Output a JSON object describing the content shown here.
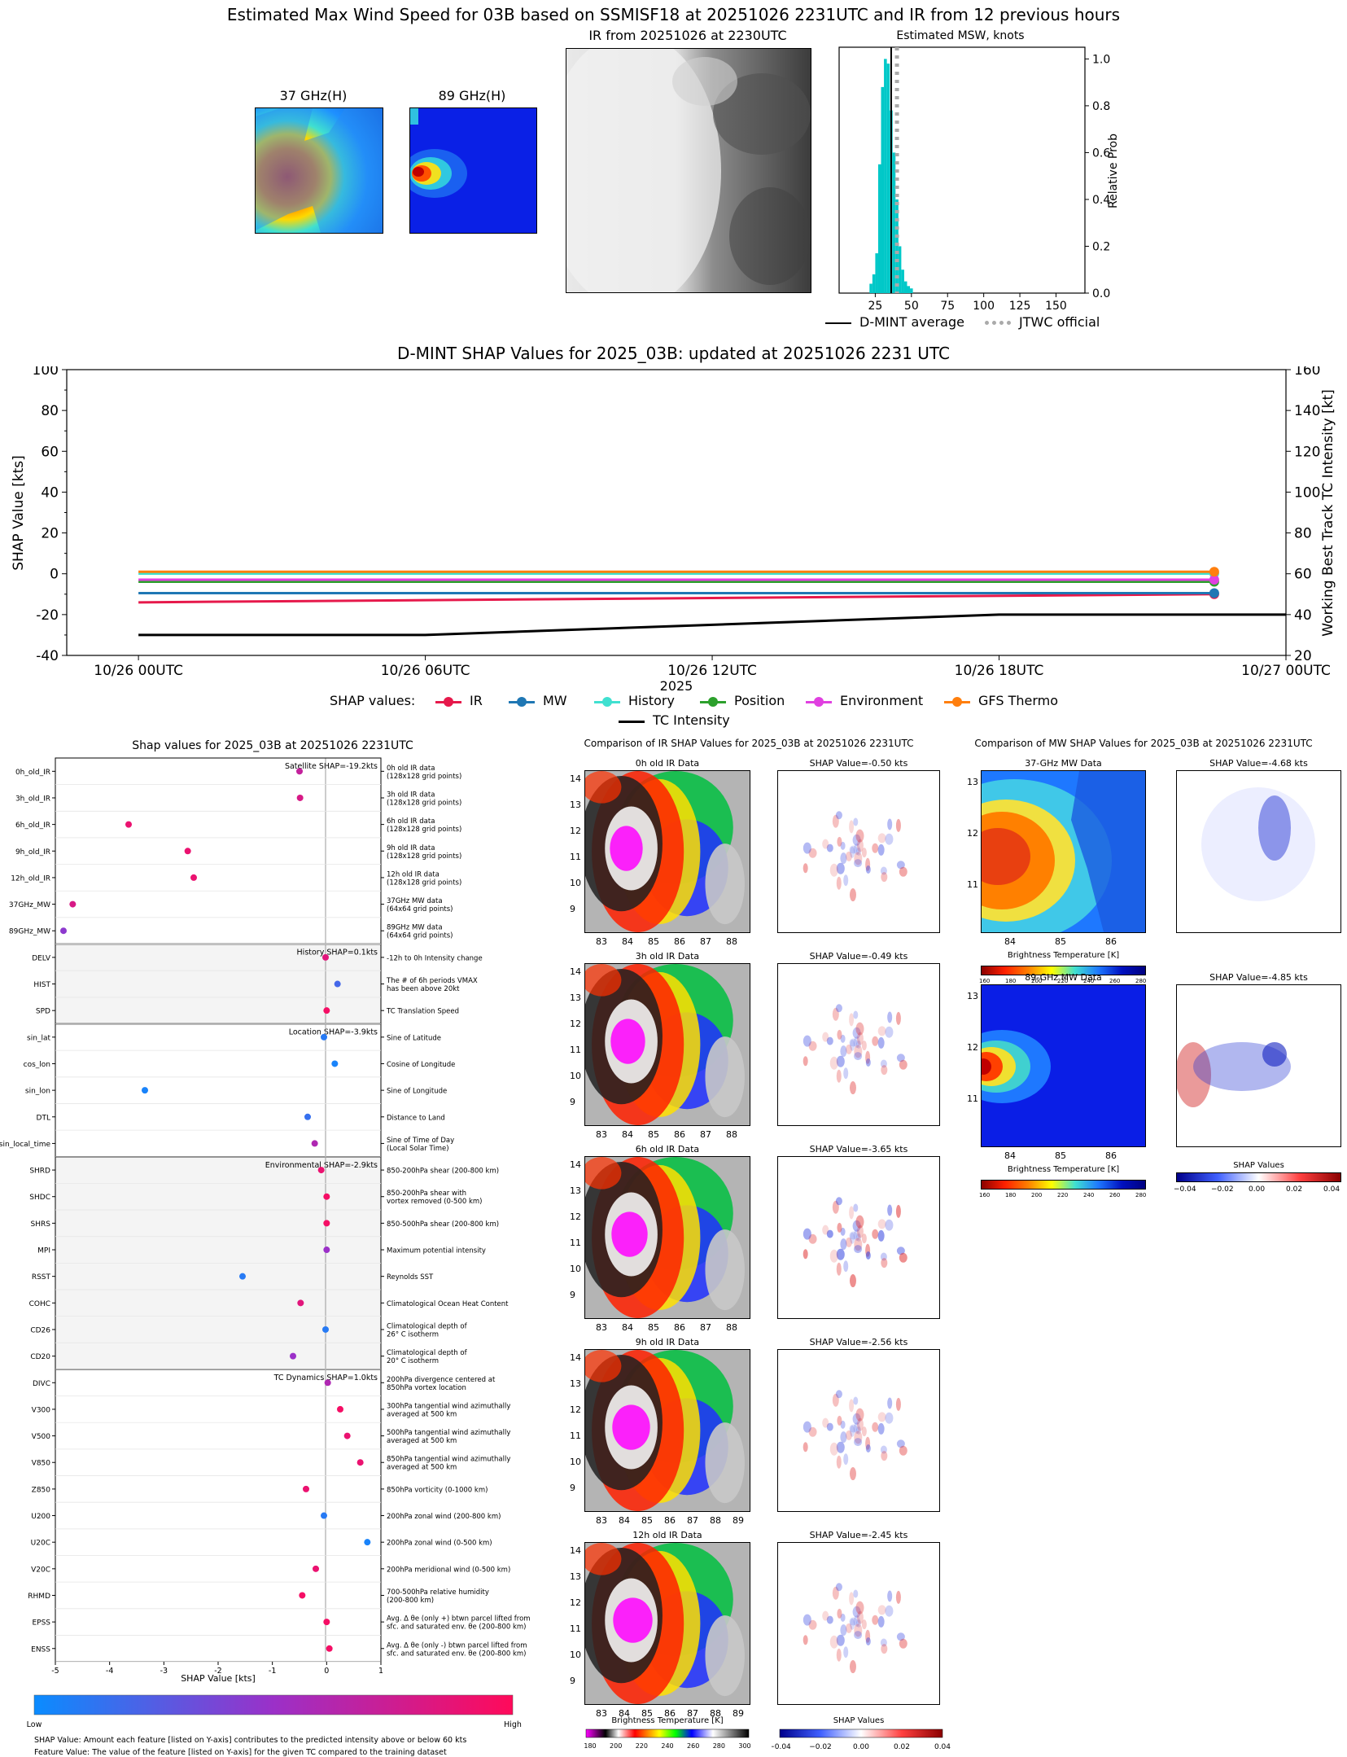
{
  "top": {
    "title": "Estimated Max Wind Speed for 03B based on SSMISF18 at 20251026 2231UTC and IR from 12 previous hours",
    "mw37_title": "37 GHz(H)",
    "mw89_title": "89 GHz(H)",
    "ir_title": "IR from 20251026 at 2230UTC",
    "msw_title": "Estimated MSW, knots",
    "legend_dmint": "D-MINT average",
    "legend_jtwc": "JTWC official"
  },
  "colors": {
    "ir": "#e6194b",
    "mw": "#1f77b4",
    "history": "#40e0d0",
    "position": "#2ca02c",
    "environment": "#e040e0",
    "gfs": "#ff7f0e",
    "hist_bar": "#00c8c8",
    "high": "#ff0066",
    "low": "#1e90ff"
  },
  "chart_data": [
    {
      "type": "bar",
      "name": "msw_histogram",
      "title": "Estimated MSW, knots",
      "ylabel": "Relative Prob",
      "xlim": [
        0,
        170
      ],
      "ylim": [
        0,
        1.05
      ],
      "xticks": [
        25,
        50,
        75,
        100,
        125,
        150
      ],
      "yticks": [
        "0.0",
        "0.2",
        "0.4",
        "0.6",
        "0.8",
        "1.0"
      ],
      "bins": [
        22,
        24,
        26,
        28,
        30,
        32,
        34,
        36,
        38,
        40,
        42,
        44,
        46,
        48,
        50
      ],
      "values": [
        0.04,
        0.08,
        0.17,
        0.55,
        0.88,
        1.0,
        0.98,
        0.78,
        0.6,
        0.4,
        0.2,
        0.1,
        0.05,
        0.03,
        0.02
      ],
      "dmint_average": 36,
      "jtwc_official": 40
    },
    {
      "type": "line",
      "name": "shap_timeseries",
      "title": "D-MINT SHAP Values for 2025_03B: updated at 20251026 2231 UTC",
      "xlabel": "2025",
      "ylabel": "SHAP Value [kts]",
      "ylabel2": "Working Best Track TC Intensity [kt]",
      "x_ticks": [
        "10/26 00UTC",
        "10/26 06UTC",
        "10/26 12UTC",
        "10/26 18UTC",
        "10/27 00UTC"
      ],
      "x_hours": [
        0,
        6,
        12,
        18,
        24
      ],
      "xlim": [
        -1.5,
        24
      ],
      "ylim": [
        -40,
        100
      ],
      "y_ticks": [
        "-40",
        "-20",
        "0",
        "20",
        "40",
        "60",
        "80",
        "100"
      ],
      "y2lim": [
        20,
        160
      ],
      "y2_ticks": [
        "20",
        "40",
        "60",
        "80",
        "100",
        "120",
        "140",
        "160"
      ],
      "legend_prefix": "SHAP values:",
      "series": [
        {
          "name": "IR",
          "x": [
            0,
            22.5
          ],
          "values": [
            -14,
            -10
          ]
        },
        {
          "name": "MW",
          "x": [
            0,
            22.5
          ],
          "values": [
            -9.5,
            -9.5
          ]
        },
        {
          "name": "History",
          "x": [
            0,
            22.5
          ],
          "values": [
            0.1,
            0.1
          ]
        },
        {
          "name": "Position",
          "x": [
            0,
            22.5
          ],
          "values": [
            -3.9,
            -3.9
          ]
        },
        {
          "name": "Environment",
          "x": [
            0,
            22.5
          ],
          "values": [
            -2.9,
            -2.9
          ]
        },
        {
          "name": "GFS Thermo",
          "x": [
            0,
            22.5
          ],
          "values": [
            1.0,
            1.0
          ]
        }
      ],
      "intensity": {
        "name": "TC Intensity",
        "x": [
          0,
          6,
          18,
          24
        ],
        "values": [
          30,
          30,
          40,
          40
        ]
      }
    },
    {
      "type": "scatter",
      "name": "shap_features",
      "title": "Shap values for 2025_03B at 20251026 2231UTC",
      "xlabel": "SHAP Value [kts]",
      "xlim": [
        -5,
        1
      ],
      "xticks": [
        "-5",
        "-4",
        "-3",
        "-2",
        "-1",
        "0",
        "1"
      ],
      "groups": [
        {
          "label": "Satellite SHAP=-19.2kts",
          "shaded": false,
          "count": 7
        },
        {
          "label": "History SHAP=0.1kts",
          "shaded": true,
          "count": 3
        },
        {
          "label": "Location SHAP=-3.9kts",
          "shaded": false,
          "count": 5
        },
        {
          "label": "Environmental SHAP=-2.9kts",
          "shaded": true,
          "count": 8
        },
        {
          "label": "TC Dynamics SHAP=1.0kts",
          "shaded": false,
          "count": 11
        }
      ],
      "features": [
        {
          "name": "0h_old_IR",
          "desc": [
            "0h old IR data",
            "(128x128 grid points)"
          ],
          "value": -0.5,
          "color": 0.7
        },
        {
          "name": "3h_old_IR",
          "desc": [
            "3h old IR data",
            "(128x128 grid points)"
          ],
          "value": -0.49,
          "color": 0.8
        },
        {
          "name": "6h_old_IR",
          "desc": [
            "6h old IR data",
            "(128x128 grid points)"
          ],
          "value": -3.65,
          "color": 0.9
        },
        {
          "name": "9h_old_IR",
          "desc": [
            "9h old IR data",
            "(128x128 grid points)"
          ],
          "value": -2.56,
          "color": 0.9
        },
        {
          "name": "12h_old_IR",
          "desc": [
            "12h old IR data",
            "(128x128 grid points)"
          ],
          "value": -2.45,
          "color": 0.9
        },
        {
          "name": "37GHz_MW",
          "desc": [
            "37GHz MW data",
            "(64x64 grid points)"
          ],
          "value": -4.68,
          "color": 0.8
        },
        {
          "name": "89GHz_MW",
          "desc": [
            "89GHz MW data",
            "(64x64 grid points)"
          ],
          "value": -4.85,
          "color": 0.45
        },
        {
          "name": "DELV",
          "desc": [
            "-12h to 0h Intensity change"
          ],
          "value": -0.02,
          "color": 0.85
        },
        {
          "name": "HIST",
          "desc": [
            "The # of 6h periods VMAX",
            "has been above 20kt"
          ],
          "value": 0.2,
          "color": 0.2
        },
        {
          "name": "SPD",
          "desc": [
            "TC Translation Speed"
          ],
          "value": 0.0,
          "color": 0.95
        },
        {
          "name": "sin_lat",
          "desc": [
            "Sine of Latitude"
          ],
          "value": -0.05,
          "color": 0.1
        },
        {
          "name": "cos_lon",
          "desc": [
            "Cosine of Longitude"
          ],
          "value": 0.15,
          "color": 0.05
        },
        {
          "name": "sin_lon",
          "desc": [
            "Sine of Longitude"
          ],
          "value": -3.35,
          "color": 0.05
        },
        {
          "name": "DTL",
          "desc": [
            "Distance to Land"
          ],
          "value": -0.35,
          "color": 0.15
        },
        {
          "name": "sin_local_time",
          "desc": [
            "Sine of Time of Day",
            "(Local Solar Time)"
          ],
          "value": -0.22,
          "color": 0.6
        },
        {
          "name": "SHRD",
          "desc": [
            "850-200hPa shear (200-800 km)"
          ],
          "value": -0.1,
          "color": 0.9
        },
        {
          "name": "SHDC",
          "desc": [
            "850-200hPa shear with",
            "vortex removed (0-500 km)"
          ],
          "value": 0.0,
          "color": 0.95
        },
        {
          "name": "SHRS",
          "desc": [
            "850-500hPa shear (200-800 km)"
          ],
          "value": 0.0,
          "color": 0.95
        },
        {
          "name": "MPI",
          "desc": [
            "Maximum potential intensity"
          ],
          "value": 0.0,
          "color": 0.5
        },
        {
          "name": "RSST",
          "desc": [
            "Reynolds SST"
          ],
          "value": -1.55,
          "color": 0.1
        },
        {
          "name": "COHC",
          "desc": [
            "Climatological Ocean Heat Content"
          ],
          "value": -0.48,
          "color": 0.85
        },
        {
          "name": "CD26",
          "desc": [
            "Climatological depth of",
            "26° C isotherm"
          ],
          "value": -0.02,
          "color": 0.1
        },
        {
          "name": "CD20",
          "desc": [
            "Climatological depth of",
            "20° C isotherm"
          ],
          "value": -0.62,
          "color": 0.5
        },
        {
          "name": "DIVC",
          "desc": [
            "200hPa divergence centered at",
            "850hPa vortex location"
          ],
          "value": 0.02,
          "color": 0.6
        },
        {
          "name": "V300",
          "desc": [
            "300hPa tangential wind azimuthally",
            "averaged at 500 km"
          ],
          "value": 0.25,
          "color": 0.95
        },
        {
          "name": "V500",
          "desc": [
            "500hPa tangential wind azimuthally",
            "averaged at 500 km"
          ],
          "value": 0.38,
          "color": 0.9
        },
        {
          "name": "V850",
          "desc": [
            "850hPa tangential wind azimuthally",
            "averaged at 500 km"
          ],
          "value": 0.62,
          "color": 0.9
        },
        {
          "name": "Z850",
          "desc": [
            "850hPa vorticity (0-1000 km)"
          ],
          "value": -0.38,
          "color": 0.9
        },
        {
          "name": "U200",
          "desc": [
            "200hPa zonal wind (200-800 km)"
          ],
          "value": -0.05,
          "color": 0.1
        },
        {
          "name": "U20C",
          "desc": [
            "200hPa zonal wind (0-500 km)"
          ],
          "value": 0.75,
          "color": 0.05
        },
        {
          "name": "V20C",
          "desc": [
            "200hPa meridional wind (0-500 km)"
          ],
          "value": -0.2,
          "color": 0.9
        },
        {
          "name": "RHMD",
          "desc": [
            "700-500hPa relative humidity",
            "(200-800 km)"
          ],
          "value": -0.45,
          "color": 0.95
        },
        {
          "name": "EPSS",
          "desc": [
            "Avg. Δ θe (only +) btwn parcel lifted from",
            "sfc. and saturated env. θe (200-800 km)"
          ],
          "value": 0.0,
          "color": 0.95
        },
        {
          "name": "ENSS",
          "desc": [
            "Avg. Δ θe (only -) btwn parcel lifted from",
            "sfc. and saturated env. θe (200-800 km)"
          ],
          "value": 0.05,
          "color": 0.95
        }
      ]
    }
  ],
  "feature_colorbar": {
    "low": "Low",
    "high": "High"
  },
  "footnotes": {
    "line1": "SHAP Value: Amount each feature [listed on Y-axis] contributes to the predicted intensity above or below 60 kts",
    "line2": "Feature Value: The value of the feature [listed on Y-axis] for the given TC compared to the training dataset"
  },
  "ir_compare": {
    "title": "Comparison of IR SHAP Values for 2025_03B at 20251026 2231UTC",
    "xticks": [
      "83",
      "84",
      "85",
      "86",
      "87",
      "88"
    ],
    "xticks_wide": [
      "83",
      "84",
      "85",
      "86",
      "87",
      "88",
      "89"
    ],
    "yticks": [
      "14",
      "13",
      "12",
      "11",
      "10",
      "9"
    ],
    "rows": [
      {
        "label": "0h old IR Data",
        "shap": "SHAP Value=-0.50 kts"
      },
      {
        "label": "3h old IR Data",
        "shap": "SHAP Value=-0.49 kts"
      },
      {
        "label": "6h old IR Data",
        "shap": "SHAP Value=-3.65 kts"
      },
      {
        "label": "9h old IR Data",
        "shap": "SHAP Value=-2.56 kts"
      },
      {
        "label": "12h old IR Data",
        "shap": "SHAP Value=-2.45 kts"
      }
    ],
    "bt_label": "Brightness Temperature [K]",
    "bt_ticks": [
      "180",
      "200",
      "220",
      "240",
      "260",
      "280",
      "300"
    ],
    "shap_label": "SHAP Values",
    "shap_ticks": [
      "−0.04",
      "−0.02",
      "0.00",
      "0.02",
      "0.04"
    ]
  },
  "mw_compare": {
    "title": "Comparison of MW SHAP Values for 2025_03B at 20251026 2231UTC",
    "xticks": [
      "84",
      "85",
      "86"
    ],
    "yticks": [
      "13",
      "12",
      "11"
    ],
    "rows": [
      {
        "label": "37-GHz MW Data",
        "shap": "SHAP Value=-4.68 kts"
      },
      {
        "label": "89-GHz MW Data",
        "shap": "SHAP Value=-4.85 kts"
      }
    ],
    "bt_label": "Brightness Temperature [K]",
    "bt_ticks": [
      "160",
      "180",
      "200",
      "220",
      "240",
      "260",
      "280"
    ],
    "shap_label": "SHAP Values",
    "shap_ticks": [
      "−0.04",
      "−0.02",
      "0.00",
      "0.02",
      "0.04"
    ]
  }
}
